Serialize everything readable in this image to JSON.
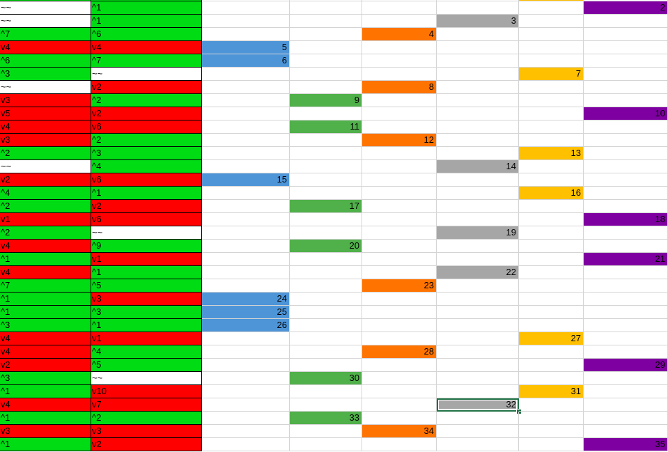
{
  "colors": {
    "up": "#00dc14",
    "down": "#ff0000",
    "flat": "#ffffff",
    "C": "#4e95d8",
    "D": "#50b04a",
    "E": "#ff7300",
    "F": "#a6a6a6",
    "G": "#ffc000",
    "H": "#7f00a0"
  },
  "top_partial_row": {
    "a_fill": "up",
    "b_fill": "up",
    "col": "G"
  },
  "selected_cell": {
    "row_value": 32
  },
  "rows": [
    {
      "a": "~~",
      "b": "^1",
      "value": 2,
      "col": "H"
    },
    {
      "a": "~~",
      "b": "^1",
      "value": 3,
      "col": "F"
    },
    {
      "a": "^7",
      "b": "^6",
      "value": 4,
      "col": "E"
    },
    {
      "a": "v4",
      "b": "v4",
      "value": 5,
      "col": "C"
    },
    {
      "a": "^6",
      "b": "^7",
      "value": 6,
      "col": "C"
    },
    {
      "a": "^3",
      "b": "~~",
      "value": 7,
      "col": "G"
    },
    {
      "a": "~~",
      "b": "v2",
      "value": 8,
      "col": "E"
    },
    {
      "a": "v3",
      "b": "^2",
      "value": 9,
      "col": "D"
    },
    {
      "a": "v5",
      "b": "v2",
      "value": 10,
      "col": "H"
    },
    {
      "a": "v4",
      "b": "v6",
      "value": 11,
      "col": "D"
    },
    {
      "a": "v3",
      "b": "^2",
      "value": 12,
      "col": "E"
    },
    {
      "a": "^2",
      "b": "^3",
      "value": 13,
      "col": "G"
    },
    {
      "a": "~~",
      "b": "^4",
      "value": 14,
      "col": "F"
    },
    {
      "a": "v2",
      "b": "v6",
      "value": 15,
      "col": "C"
    },
    {
      "a": "^4",
      "b": "^1",
      "value": 16,
      "col": "G"
    },
    {
      "a": "^2",
      "b": "v2",
      "value": 17,
      "col": "D"
    },
    {
      "a": "v1",
      "b": "v6",
      "value": 18,
      "col": "H"
    },
    {
      "a": "^2",
      "b": "~~",
      "value": 19,
      "col": "F"
    },
    {
      "a": "v4",
      "b": "^9",
      "value": 20,
      "col": "D"
    },
    {
      "a": "^1",
      "b": "v1",
      "value": 21,
      "col": "H"
    },
    {
      "a": "v4",
      "b": "^1",
      "value": 22,
      "col": "F"
    },
    {
      "a": "^7",
      "b": "^5",
      "value": 23,
      "col": "E"
    },
    {
      "a": "^1",
      "b": "v3",
      "value": 24,
      "col": "C"
    },
    {
      "a": "^1",
      "b": "^3",
      "value": 25,
      "col": "C"
    },
    {
      "a": "^3",
      "b": "^1",
      "value": 26,
      "col": "C"
    },
    {
      "a": "v4",
      "b": "v1",
      "value": 27,
      "col": "G"
    },
    {
      "a": "v4",
      "b": "^4",
      "value": 28,
      "col": "E"
    },
    {
      "a": "v2",
      "b": "^5",
      "value": 29,
      "col": "H"
    },
    {
      "a": "^3",
      "b": "~~",
      "value": 30,
      "col": "D"
    },
    {
      "a": "^1",
      "b": "v10",
      "value": 31,
      "col": "G"
    },
    {
      "a": "v4",
      "b": "v7",
      "value": 32,
      "col": "F"
    },
    {
      "a": "^1",
      "b": "^2",
      "value": 33,
      "col": "D"
    },
    {
      "a": "v3",
      "b": "v3",
      "value": 34,
      "col": "E"
    },
    {
      "a": "^1",
      "b": "v2",
      "value": 35,
      "col": "H"
    }
  ]
}
